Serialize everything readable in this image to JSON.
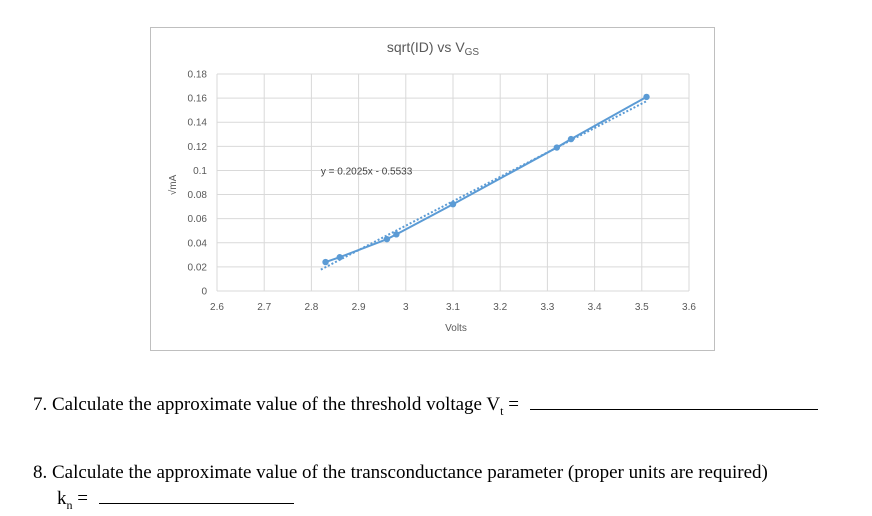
{
  "chart_data": {
    "type": "scatter",
    "title": "sqrt(ID) vs VGS",
    "title_main": "sqrt(ID) vs V",
    "title_sub": "GS",
    "xlabel": "Volts",
    "ylabel": "√mA",
    "xlim": [
      2.6,
      3.6
    ],
    "ylim": [
      0,
      0.18
    ],
    "x_ticks": [
      "2.6",
      "2.7",
      "2.8",
      "2.9",
      "3",
      "3.1",
      "3.2",
      "3.3",
      "3.4",
      "3.5",
      "3.6"
    ],
    "y_ticks": [
      "0",
      "0.02",
      "0.04",
      "0.06",
      "0.08",
      "0.1",
      "0.12",
      "0.14",
      "0.16",
      "0.18"
    ],
    "grid": true,
    "series": [
      {
        "x": [
          2.83,
          2.86,
          2.96,
          2.98,
          3.1,
          3.32,
          3.35,
          3.51
        ],
        "y": [
          0.024,
          0.028,
          0.043,
          0.047,
          0.072,
          0.119,
          0.126,
          0.161
        ],
        "color": "#5b9bd5"
      }
    ],
    "trendline": {
      "slope": 0.2025,
      "intercept": -0.5533,
      "x_range": [
        2.82,
        3.51
      ],
      "equation_label": "y = 0.2025x - 0.5533",
      "equation_x": 2.82,
      "equation_y": 0.1,
      "color": "#5b9bd5",
      "style": "dotted"
    }
  },
  "questions": [
    {
      "text": "7. Calculate the approximate value of the threshold voltage V",
      "sub": "t",
      "suffix": " ="
    },
    {
      "text": "8. Calculate the approximate value of the transconductance parameter (proper units are required)",
      "var": "k",
      "var_sub": "n",
      "suffix": " ="
    }
  ]
}
